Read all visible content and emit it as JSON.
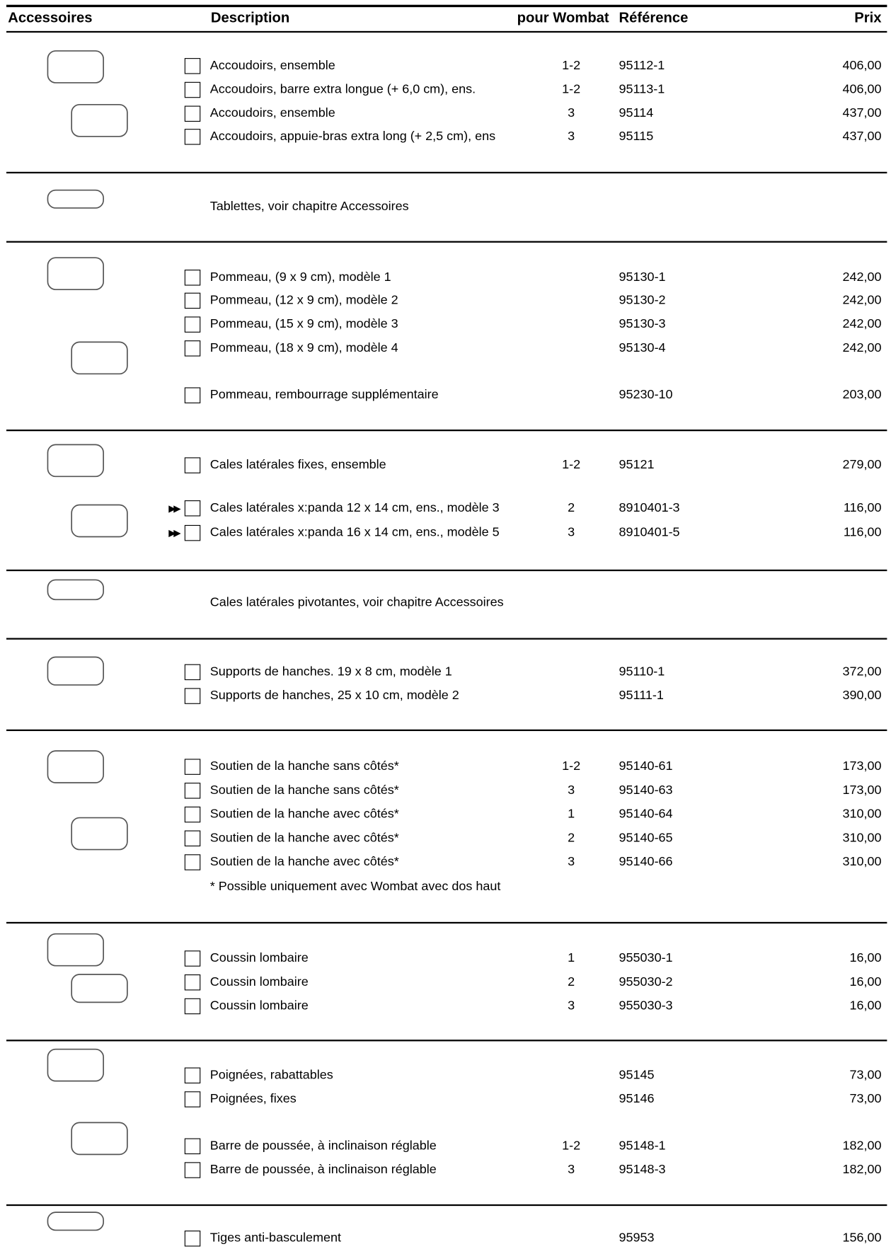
{
  "header": {
    "accessories": "Accessoires",
    "description": "Description",
    "wombat": "pour Wombat",
    "reference": "Référence",
    "price": "Prix"
  },
  "sections": [
    {
      "rows": [
        {
          "description": "Accoudoirs, ensemble",
          "wombat": "1-2",
          "reference": "95112-1",
          "price": "406,00"
        },
        {
          "description": "Accoudoirs, barre extra longue (+ 6,0 cm), ens.",
          "wombat": "1-2",
          "reference": "95113-1",
          "price": "406,00"
        },
        {
          "description": "Accoudoirs, ensemble",
          "wombat": "3",
          "reference": "95114",
          "price": "437,00"
        },
        {
          "description": "Accoudoirs, appuie-bras extra long (+ 2,5 cm), ens",
          "wombat": "3",
          "reference": "95115",
          "price": "437,00"
        }
      ]
    },
    {
      "note": "Tablettes, voir chapitre Accessoires"
    },
    {
      "rows": [
        {
          "description": "Pommeau, (9 x 9 cm), modèle 1",
          "reference": "95130-1",
          "price": "242,00"
        },
        {
          "description": "Pommeau, (12 x 9 cm), modèle 2",
          "reference": "95130-2",
          "price": "242,00"
        },
        {
          "description": "Pommeau, (15 x 9 cm), modèle 3",
          "reference": "95130-3",
          "price": "242,00"
        },
        {
          "description": "Pommeau, (18 x 9 cm), modèle 4",
          "reference": "95130-4",
          "price": "242,00"
        },
        {
          "description": "Pommeau, rembourrage supplémentaire",
          "reference": "95230-10",
          "price": "203,00"
        }
      ]
    },
    {
      "rows": [
        {
          "description": "Cales latérales fixes, ensemble",
          "wombat": "1-2",
          "reference": "95121",
          "price": "279,00"
        },
        {
          "description": "Cales latérales x:panda 12 x 14 cm, ens., modèle 3",
          "wombat": "2",
          "reference": "8910401-3",
          "price": "116,00"
        },
        {
          "description": "Cales latérales x:panda 16 x 14 cm, ens., modèle 5",
          "wombat": "3",
          "reference": "8910401-5",
          "price": "116,00"
        }
      ]
    },
    {
      "note": "Cales latérales pivotantes, voir chapitre Accessoires"
    },
    {
      "rows": [
        {
          "description": "Supports de hanches. 19 x 8 cm, modèle 1",
          "reference": "95110-1",
          "price": "372,00"
        },
        {
          "description": "Supports de hanches, 25 x 10 cm, modèle 2",
          "reference": "95111-1",
          "price": "390,00"
        }
      ]
    },
    {
      "rows": [
        {
          "description": "Soutien de la hanche sans côtés*",
          "wombat": "1-2",
          "reference": "95140-61",
          "price": "173,00"
        },
        {
          "description": "Soutien de la hanche sans côtés*",
          "wombat": "3",
          "reference": "95140-63",
          "price": "173,00"
        },
        {
          "description": "Soutien de la hanche avec côtés*",
          "wombat": "1",
          "reference": "95140-64",
          "price": "310,00"
        },
        {
          "description": "Soutien de la hanche avec côtés*",
          "wombat": "2",
          "reference": "95140-65",
          "price": "310,00"
        },
        {
          "description": "Soutien de la hanche avec côtés*",
          "wombat": "3",
          "reference": "95140-66",
          "price": "310,00"
        }
      ],
      "footnote": "* Possible uniquement avec Wombat avec dos haut"
    },
    {
      "rows": [
        {
          "description": "Coussin lombaire",
          "wombat": "1",
          "reference": "955030-1",
          "price": "16,00"
        },
        {
          "description": "Coussin lombaire",
          "wombat": "2",
          "reference": "955030-2",
          "price": "16,00"
        },
        {
          "description": "Coussin lombaire",
          "wombat": "3",
          "reference": "955030-3",
          "price": "16,00"
        }
      ]
    },
    {
      "rows": [
        {
          "description": "Poignées, rabattables",
          "reference": "95145",
          "price": "73,00"
        },
        {
          "description": "Poignées, fixes",
          "reference": "95146",
          "price": "73,00"
        },
        {
          "description": "Barre de poussée, à inclinaison réglable",
          "wombat": "1-2",
          "reference": "95148-1",
          "price": "182,00"
        },
        {
          "description": "Barre de poussée, à inclinaison réglable",
          "wombat": "3",
          "reference": "95148-3",
          "price": "182,00"
        }
      ]
    },
    {
      "rows": [
        {
          "description": "Tiges anti-basculement",
          "reference": "95953",
          "price": "156,00"
        }
      ]
    }
  ]
}
